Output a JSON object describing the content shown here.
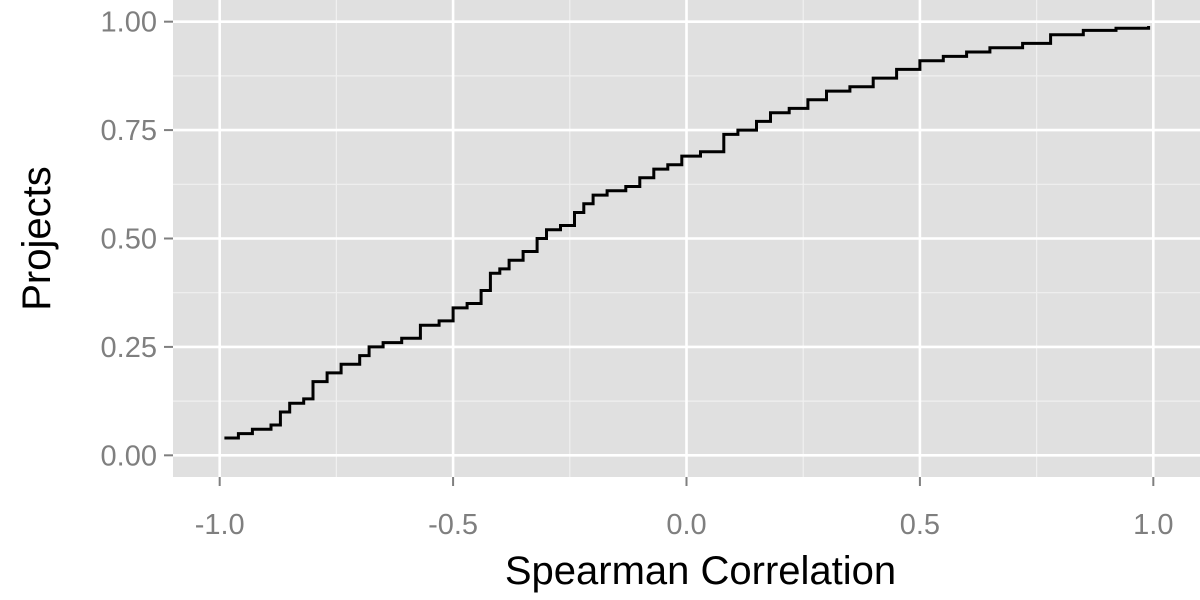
{
  "chart_data": {
    "type": "line",
    "title": "",
    "xlabel": "Spearman Correlation",
    "ylabel": "Projects",
    "xlim": [
      -1.1,
      1.1
    ],
    "ylim": [
      -0.05,
      1.05
    ],
    "x_ticks": [
      -1.0,
      -0.5,
      0.0,
      0.5,
      1.0
    ],
    "x_tick_labels": [
      "-1.0",
      "-0.5",
      "0.0",
      "0.5",
      "1.0"
    ],
    "y_ticks": [
      0.0,
      0.25,
      0.5,
      0.75,
      1.0
    ],
    "y_tick_labels": [
      "0.00",
      "0.25",
      "0.50",
      "0.75",
      "1.00"
    ],
    "grid": true,
    "legend": "none",
    "colors": {
      "panel": "#e0e0e0",
      "grid": "#ffffff",
      "line": "#000000"
    },
    "series": [
      {
        "x": [
          -0.99,
          -0.96,
          -0.93,
          -0.89,
          -0.87,
          -0.85,
          -0.82,
          -0.8,
          -0.77,
          -0.74,
          -0.7,
          -0.68,
          -0.65,
          -0.61,
          -0.57,
          -0.53,
          -0.5,
          -0.47,
          -0.44,
          -0.42,
          -0.4,
          -0.38,
          -0.35,
          -0.32,
          -0.3,
          -0.27,
          -0.24,
          -0.22,
          -0.2,
          -0.17,
          -0.13,
          -0.1,
          -0.07,
          -0.04,
          -0.01,
          0.03,
          0.08,
          0.11,
          0.15,
          0.18,
          0.22,
          0.26,
          0.3,
          0.35,
          0.4,
          0.45,
          0.5,
          0.55,
          0.6,
          0.65,
          0.72,
          0.78,
          0.85,
          0.92,
          0.99
        ],
        "y": [
          0.04,
          0.05,
          0.06,
          0.07,
          0.1,
          0.12,
          0.13,
          0.17,
          0.19,
          0.21,
          0.23,
          0.25,
          0.26,
          0.27,
          0.3,
          0.31,
          0.34,
          0.35,
          0.38,
          0.42,
          0.43,
          0.45,
          0.47,
          0.5,
          0.52,
          0.53,
          0.56,
          0.58,
          0.6,
          0.61,
          0.62,
          0.64,
          0.66,
          0.67,
          0.69,
          0.7,
          0.74,
          0.75,
          0.77,
          0.79,
          0.8,
          0.82,
          0.84,
          0.85,
          0.87,
          0.89,
          0.91,
          0.92,
          0.93,
          0.94,
          0.95,
          0.97,
          0.98,
          0.985,
          0.99
        ]
      }
    ]
  }
}
